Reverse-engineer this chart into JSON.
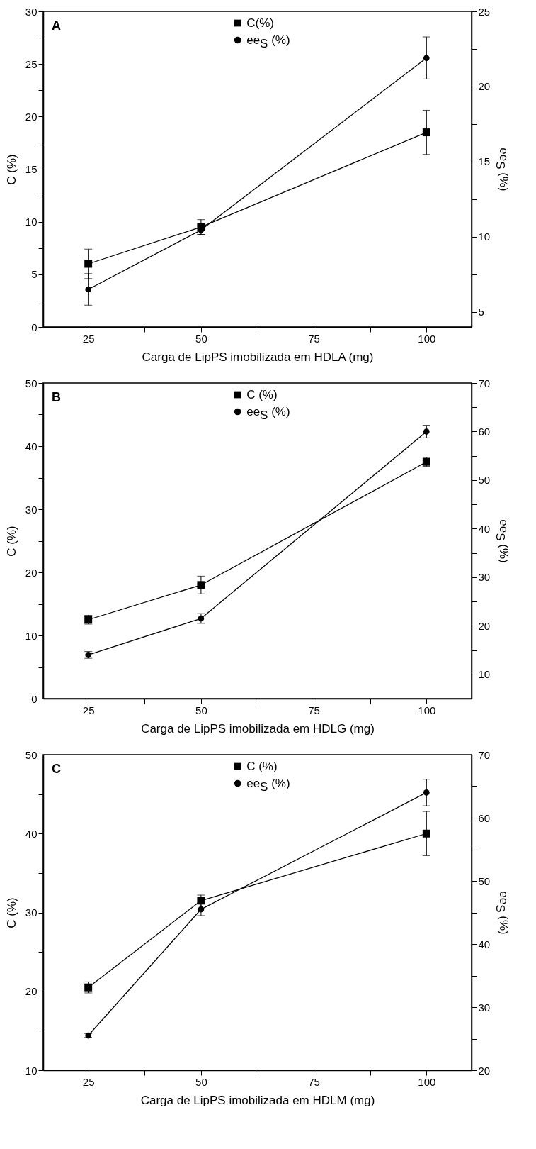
{
  "chart_data": [
    {
      "type": "line",
      "annotations": [
        "A"
      ],
      "x": [
        25,
        50,
        100
      ],
      "xlabel": "Carga de LipPS imobilizada em HDLA (mg)",
      "ylabel": "C (%)",
      "y2label": "ee$_{S}$ (%)",
      "xlim": [
        15,
        110
      ],
      "xticks": [
        25,
        {
          "value": 37.5,
          "label": null
        },
        50,
        {
          "value": 62.5,
          "label": null
        },
        75,
        {
          "value": 87.5,
          "label": null
        },
        100
      ],
      "ylim": [
        0,
        30
      ],
      "yticks": [
        0,
        {
          "value": 2.5,
          "label": null
        },
        5,
        {
          "value": 7.5,
          "label": null
        },
        10,
        {
          "value": 12.5,
          "label": null
        },
        15,
        {
          "value": 17.5,
          "label": null
        },
        20,
        {
          "value": 22.5,
          "label": null
        },
        25,
        {
          "value": 27.5,
          "label": null
        },
        30
      ],
      "y2lim": [
        4,
        25
      ],
      "y2ticks": [
        5,
        {
          "value": 7.5,
          "label": null
        },
        10,
        {
          "value": 12.5,
          "label": null
        },
        15,
        {
          "value": 17.5,
          "label": null
        },
        20,
        {
          "value": 22.5,
          "label": null
        },
        25
      ],
      "legend": "top",
      "series": [
        {
          "name": "C(%)",
          "color": "#000000",
          "marker": "square",
          "values": [
            6.0,
            9.5,
            18.5
          ],
          "errors": [
            1.4,
            0.7,
            2.1
          ]
        },
        {
          "name": "ee$_{S}$ (%)",
          "color": "#000000",
          "marker": "circle",
          "axis": "y2",
          "values": [
            6.5,
            10.45,
            21.9
          ],
          "errors": [
            1.05,
            0.3,
            1.4
          ]
        }
      ]
    },
    {
      "type": "line",
      "annotations": [
        "B"
      ],
      "x": [
        25,
        50,
        100
      ],
      "xlabel": "Carga de LipPS imobilizada em HDLG (mg)",
      "ylabel": "C (%)",
      "y2label": "ee$_{S}$ (%)",
      "xlim": [
        15,
        110
      ],
      "xticks": [
        25,
        {
          "value": 37.5,
          "label": null
        },
        50,
        {
          "value": 62.5,
          "label": null
        },
        75,
        {
          "value": 87.5,
          "label": null
        },
        100
      ],
      "ylim": [
        0,
        50
      ],
      "yticks": [
        0,
        {
          "value": 5,
          "label": null
        },
        10,
        {
          "value": 15,
          "label": null
        },
        20,
        {
          "value": 25,
          "label": null
        },
        30,
        {
          "value": 35,
          "label": null
        },
        40,
        {
          "value": 45,
          "label": null
        },
        50
      ],
      "y2lim": [
        5,
        70
      ],
      "y2ticks": [
        10,
        {
          "value": 15,
          "label": null
        },
        20,
        {
          "value": 25,
          "label": null
        },
        30,
        {
          "value": 35,
          "label": null
        },
        40,
        {
          "value": 45,
          "label": null
        },
        50,
        {
          "value": 55,
          "label": null
        },
        60,
        {
          "value": 65,
          "label": null
        },
        70
      ],
      "legend": "top",
      "series": [
        {
          "name": "C (%)",
          "color": "#000000",
          "marker": "square",
          "values": [
            12.5,
            18.0,
            37.5
          ],
          "errors": [
            0.7,
            1.4,
            0.7
          ]
        },
        {
          "name": "ee$_{S}$ (%)",
          "color": "#000000",
          "marker": "circle",
          "axis": "y2",
          "values": [
            14.0,
            21.5,
            60.0
          ],
          "errors": [
            0.7,
            1.0,
            1.3
          ]
        }
      ]
    },
    {
      "type": "line",
      "annotations": [
        "C"
      ],
      "x": [
        25,
        50,
        100
      ],
      "xlabel": "Carga de LipPS imobilizada em HDLM (mg)",
      "ylabel": "C (%)",
      "y2label": "ee$_{S}$ (%)",
      "xlim": [
        15,
        110
      ],
      "xticks": [
        25,
        {
          "value": 37.5,
          "label": null
        },
        50,
        {
          "value": 62.5,
          "label": null
        },
        75,
        {
          "value": 87.5,
          "label": null
        },
        100
      ],
      "ylim": [
        10,
        50
      ],
      "yticks": [
        10,
        {
          "value": 15,
          "label": null
        },
        20,
        {
          "value": 25,
          "label": null
        },
        30,
        {
          "value": 35,
          "label": null
        },
        40,
        {
          "value": 45,
          "label": null
        },
        50
      ],
      "y2lim": [
        20,
        70
      ],
      "y2ticks": [
        20,
        {
          "value": 25,
          "label": null
        },
        30,
        {
          "value": 35,
          "label": null
        },
        40,
        {
          "value": 45,
          "label": null
        },
        50,
        {
          "value": 55,
          "label": null
        },
        60,
        {
          "value": 65,
          "label": null
        },
        70
      ],
      "legend": "top",
      "series": [
        {
          "name": "C (%)",
          "color": "#000000",
          "marker": "square",
          "values": [
            20.5,
            31.5,
            40.0
          ],
          "errors": [
            0.7,
            0.7,
            2.8
          ]
        },
        {
          "name": "ee$_{S}$ (%)",
          "color": "#000000",
          "marker": "circle",
          "axis": "y2",
          "values": [
            25.5,
            45.5,
            64.0
          ],
          "errors": [
            0.3,
            1.0,
            2.1
          ]
        }
      ]
    }
  ]
}
